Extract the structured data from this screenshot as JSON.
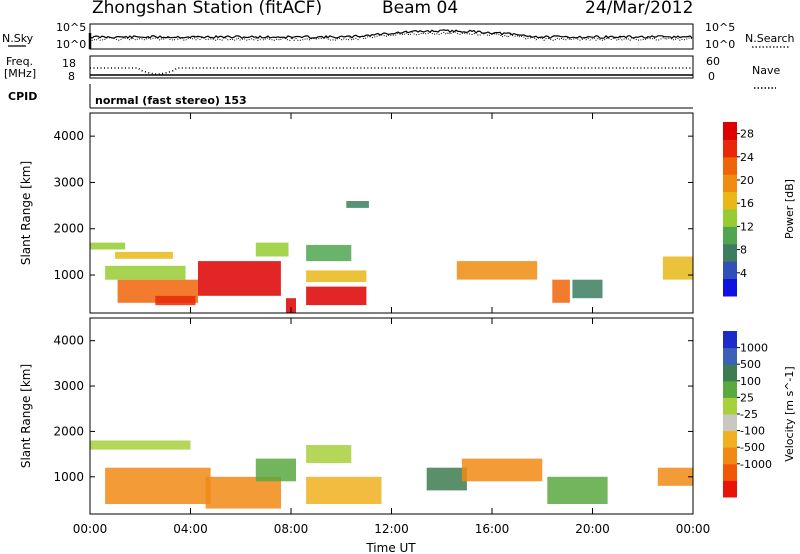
{
  "header": {
    "title": "Zhongshan Station (fitACF)",
    "beam": "Beam 04",
    "date": "24/Mar/2012"
  },
  "panels": {
    "nsky_label": "N.Sky",
    "nsearch_label": "N.Search",
    "sky_tick_top": "10^5",
    "sky_tick_bottom": "10^0",
    "freq_label_1": "Freq.",
    "freq_label_2": "[MHz]",
    "freq_tick_top": "18",
    "freq_tick_bottom": "8",
    "nave_label": "Nave",
    "nave_tick_top": "60",
    "nave_tick_bottom": "0",
    "cpid_label": "CPID",
    "cpid_text": "normal (fast stereo) 153"
  },
  "chart_data": [
    {
      "type": "heatmap",
      "title": "",
      "xlabel": "Time UT",
      "ylabel": "Slant Range [km]",
      "x_ticks": [
        "00:00",
        "04:00",
        "08:00",
        "12:00",
        "16:00",
        "20:00",
        "00:00"
      ],
      "x_range_hours": [
        0,
        24
      ],
      "y_ticks": [
        1000,
        2000,
        3000,
        4000
      ],
      "ylim": [
        180,
        4500
      ],
      "colorbar": {
        "label": "Power [dB]",
        "ticks": [
          "4",
          "8",
          "12",
          "16",
          "20",
          "24",
          "28"
        ],
        "range": [
          0,
          30
        ],
        "colors": [
          "#1010e0",
          "#3050b8",
          "#3c7c60",
          "#50a650",
          "#96cc32",
          "#e8b818",
          "#f08c10",
          "#f06408",
          "#e82808",
          "#dd0000"
        ]
      },
      "data": [
        {
          "t": [
            0.0,
            1.4
          ],
          "r": [
            1550,
            1700
          ],
          "value": 12
        },
        {
          "t": [
            1.0,
            3.3
          ],
          "r": [
            1350,
            1500
          ],
          "value": 16
        },
        {
          "t": [
            0.6,
            3.8
          ],
          "r": [
            900,
            1200
          ],
          "value": 14
        },
        {
          "t": [
            1.1,
            4.3
          ],
          "r": [
            400,
            900
          ],
          "value": 22
        },
        {
          "t": [
            2.6,
            4.2
          ],
          "r": [
            350,
            550
          ],
          "value": 25
        },
        {
          "t": [
            4.3,
            7.6
          ],
          "r": [
            550,
            1300
          ],
          "value": 28
        },
        {
          "t": [
            6.6,
            7.9
          ],
          "r": [
            1400,
            1700
          ],
          "value": 12
        },
        {
          "t": [
            7.8,
            8.2
          ],
          "r": [
            180,
            500
          ],
          "value": 28
        },
        {
          "t": [
            8.6,
            11.0
          ],
          "r": [
            350,
            750
          ],
          "value": 27
        },
        {
          "t": [
            8.6,
            11.0
          ],
          "r": [
            850,
            1100
          ],
          "value": 16
        },
        {
          "t": [
            8.6,
            10.4
          ],
          "r": [
            1300,
            1650
          ],
          "value": 10
        },
        {
          "t": [
            10.2,
            11.1
          ],
          "r": [
            2450,
            2600
          ],
          "value": 6
        },
        {
          "t": [
            14.6,
            17.8
          ],
          "r": [
            900,
            1300
          ],
          "value": 20
        },
        {
          "t": [
            18.4,
            19.1
          ],
          "r": [
            400,
            900
          ],
          "value": 23
        },
        {
          "t": [
            19.2,
            20.4
          ],
          "r": [
            500,
            900
          ],
          "value": 6
        },
        {
          "t": [
            22.8,
            24.0
          ],
          "r": [
            900,
            1400
          ],
          "value": 15
        }
      ]
    },
    {
      "type": "heatmap",
      "title": "",
      "xlabel": "Time UT",
      "ylabel": "Slant Range [km]",
      "x_ticks": [
        "00:00",
        "04:00",
        "08:00",
        "12:00",
        "16:00",
        "20:00",
        "00:00"
      ],
      "x_range_hours": [
        0,
        24
      ],
      "y_ticks": [
        1000,
        2000,
        3000,
        4000
      ],
      "ylim": [
        180,
        4500
      ],
      "colorbar": {
        "label": "Velocity [m s^-1]",
        "ticks": [
          "1000",
          "500",
          "100",
          "25",
          "-25",
          "-100",
          "-500",
          "-1000"
        ],
        "colors": [
          "#1c2cc8",
          "#3c60b8",
          "#3c7c50",
          "#5aa840",
          "#a8d03c",
          "#c8c8c0",
          "#f0b020",
          "#f08a14",
          "#f05808",
          "#e81408"
        ]
      },
      "data": [
        {
          "t": [
            0.0,
            4.0
          ],
          "r": [
            1600,
            1800
          ],
          "value": 0
        },
        {
          "t": [
            0.6,
            4.8
          ],
          "r": [
            400,
            1200
          ],
          "value": -150
        },
        {
          "t": [
            4.6,
            7.6
          ],
          "r": [
            300,
            1000
          ],
          "value": -250
        },
        {
          "t": [
            6.6,
            8.2
          ],
          "r": [
            900,
            1400
          ],
          "value": 60
        },
        {
          "t": [
            8.6,
            10.4
          ],
          "r": [
            1300,
            1700
          ],
          "value": 0
        },
        {
          "t": [
            8.6,
            11.6
          ],
          "r": [
            400,
            1000
          ],
          "value": -60
        },
        {
          "t": [
            13.4,
            15.0
          ],
          "r": [
            700,
            1200
          ],
          "value": 150
        },
        {
          "t": [
            14.8,
            18.0
          ],
          "r": [
            900,
            1400
          ],
          "value": -320
        },
        {
          "t": [
            18.2,
            20.6
          ],
          "r": [
            400,
            1000
          ],
          "value": 60
        },
        {
          "t": [
            22.6,
            24.0
          ],
          "r": [
            800,
            1200
          ],
          "value": -200
        }
      ]
    }
  ]
}
